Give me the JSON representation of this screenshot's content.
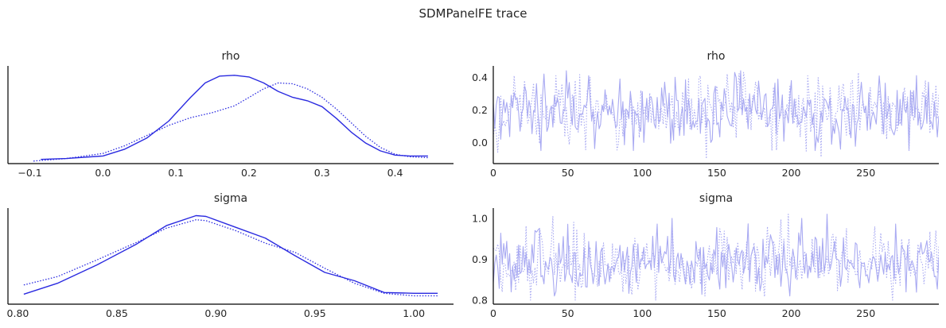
{
  "figure": {
    "title": "SDMPanelFE trace",
    "colors": {
      "kde": "#2a2ae0",
      "trace": "#a9aaf2",
      "axis": "#000000"
    }
  },
  "chart_data": [
    {
      "type": "line",
      "panel": "kde",
      "title": "rho",
      "xlabel": "",
      "ylabel": "",
      "xlim": [
        -0.13,
        0.48
      ],
      "ylim": [
        0,
        1.15
      ],
      "xticks": [
        -0.1,
        0.0,
        0.1,
        0.2,
        0.3,
        0.4
      ],
      "xtick_labels": [
        "−0.1",
        "0.0",
        "0.1",
        "0.2",
        "0.3",
        "0.4"
      ],
      "grid": false,
      "series": [
        {
          "style": "solid",
          "x": [
            -0.085,
            -0.05,
            0.0,
            0.03,
            0.06,
            0.09,
            0.12,
            0.14,
            0.16,
            0.18,
            0.2,
            0.22,
            0.24,
            0.26,
            0.28,
            0.3,
            0.32,
            0.34,
            0.36,
            0.38,
            0.4,
            0.42,
            0.445
          ],
          "y": [
            0.05,
            0.06,
            0.09,
            0.17,
            0.3,
            0.5,
            0.78,
            0.95,
            1.03,
            1.04,
            1.02,
            0.95,
            0.85,
            0.78,
            0.74,
            0.67,
            0.53,
            0.37,
            0.24,
            0.15,
            0.1,
            0.09,
            0.09
          ]
        },
        {
          "style": "dotted",
          "x": [
            -0.095,
            -0.05,
            0.0,
            0.03,
            0.06,
            0.09,
            0.12,
            0.15,
            0.18,
            0.2,
            0.22,
            0.24,
            0.26,
            0.28,
            0.3,
            0.32,
            0.34,
            0.36,
            0.38,
            0.4,
            0.42,
            0.445
          ],
          "y": [
            0.03,
            0.06,
            0.12,
            0.21,
            0.33,
            0.45,
            0.54,
            0.6,
            0.68,
            0.78,
            0.88,
            0.95,
            0.94,
            0.88,
            0.78,
            0.64,
            0.48,
            0.32,
            0.19,
            0.11,
            0.08,
            0.07
          ]
        }
      ]
    },
    {
      "type": "line",
      "panel": "trace",
      "title": "rho",
      "xlabel": "",
      "ylabel": "",
      "xlim": [
        0,
        299
      ],
      "ylim": [
        -0.13,
        0.47
      ],
      "xticks": [
        0,
        50,
        100,
        150,
        200,
        250
      ],
      "yticks": [
        0.0,
        0.2,
        0.4
      ],
      "xtick_labels": [
        "0",
        "50",
        "100",
        "150",
        "200",
        "250"
      ],
      "ytick_labels": [
        "0.0",
        "0.2",
        "0.4"
      ],
      "grid": false,
      "draws": 300,
      "series": [
        {
          "style": "solid",
          "mean": 0.19,
          "sd": 0.095,
          "min": -0.05,
          "max": 0.44,
          "anchors": [
            [
              0,
              0.24
            ],
            [
              2,
              0.23
            ],
            [
              5,
              0.02
            ],
            [
              34,
              0.42
            ],
            [
              56,
              0.08
            ],
            [
              64,
              0.41
            ],
            [
              101,
              0.0
            ],
            [
              122,
              0.4
            ],
            [
              146,
              0.0
            ],
            [
              162,
              0.43
            ],
            [
              166,
              0.44
            ],
            [
              190,
              0.05
            ],
            [
              200,
              0.38
            ],
            [
              218,
              0.0
            ],
            [
              247,
              0.37
            ],
            [
              271,
              0.32
            ],
            [
              287,
              0.08
            ],
            [
              292,
              0.37
            ]
          ]
        },
        {
          "style": "dotted",
          "mean": 0.19,
          "sd": 0.1,
          "min": -0.1,
          "max": 0.43,
          "anchors": [
            [
              3,
              -0.06
            ],
            [
              14,
              0.41
            ],
            [
              42,
              0.41
            ],
            [
              55,
              0.38
            ],
            [
              65,
              0.4
            ],
            [
              99,
              0.32
            ],
            [
              143,
              -0.1
            ],
            [
              157,
              0.42
            ],
            [
              168,
              0.43
            ],
            [
              176,
              0.37
            ],
            [
              187,
              -0.05
            ],
            [
              241,
              0.38
            ],
            [
              259,
              0.32
            ],
            [
              279,
              -0.05
            ],
            [
              290,
              0.38
            ]
          ]
        }
      ]
    },
    {
      "type": "line",
      "panel": "kde",
      "title": "sigma",
      "xlabel": "",
      "ylabel": "",
      "xlim": [
        0.795,
        1.02
      ],
      "ylim": [
        0,
        1.15
      ],
      "xticks": [
        0.8,
        0.85,
        0.9,
        0.95,
        1.0
      ],
      "xtick_labels": [
        "0.80",
        "0.85",
        "0.90",
        "0.95",
        "1.00"
      ],
      "grid": false,
      "series": [
        {
          "style": "solid",
          "x": [
            0.803,
            0.82,
            0.84,
            0.86,
            0.875,
            0.89,
            0.895,
            0.91,
            0.925,
            0.94,
            0.955,
            0.97,
            0.985,
            1.0,
            1.012
          ],
          "y": [
            0.12,
            0.25,
            0.47,
            0.72,
            0.94,
            1.06,
            1.05,
            0.92,
            0.79,
            0.58,
            0.38,
            0.28,
            0.14,
            0.13,
            0.13
          ]
        },
        {
          "style": "dotted",
          "x": [
            0.803,
            0.82,
            0.84,
            0.86,
            0.875,
            0.89,
            0.895,
            0.91,
            0.925,
            0.94,
            0.955,
            0.97,
            0.985,
            1.0,
            1.012
          ],
          "y": [
            0.23,
            0.33,
            0.53,
            0.74,
            0.91,
            1.01,
            1.0,
            0.88,
            0.73,
            0.62,
            0.43,
            0.25,
            0.13,
            0.1,
            0.1
          ]
        }
      ]
    },
    {
      "type": "line",
      "panel": "trace",
      "title": "sigma",
      "xlabel": "",
      "ylabel": "",
      "xlim": [
        0,
        299
      ],
      "ylim": [
        0.79,
        1.025
      ],
      "xticks": [
        0,
        50,
        100,
        150,
        200,
        250
      ],
      "yticks": [
        0.8,
        0.9,
        1.0
      ],
      "xtick_labels": [
        "0",
        "50",
        "100",
        "150",
        "200",
        "250"
      ],
      "ytick_labels": [
        "0.8",
        "0.9",
        "1.0"
      ],
      "grid": false,
      "draws": 300,
      "series": [
        {
          "style": "solid",
          "mean": 0.895,
          "sd": 0.035,
          "min": 0.81,
          "max": 1.01,
          "anchors": [
            [
              2,
              0.91
            ],
            [
              12,
              0.82
            ],
            [
              28,
              0.97
            ],
            [
              41,
              0.81
            ],
            [
              120,
              1.0
            ],
            [
              156,
              0.83
            ],
            [
              199,
              0.81
            ],
            [
              207,
              1.0
            ],
            [
              224,
              1.01
            ],
            [
              246,
              0.83
            ],
            [
              277,
              0.82
            ]
          ]
        },
        {
          "style": "dotted",
          "mean": 0.893,
          "sd": 0.037,
          "min": 0.8,
          "max": 1.01,
          "anchors": [
            [
              6,
              0.82
            ],
            [
              32,
              0.96
            ],
            [
              55,
              0.8
            ],
            [
              87,
              0.82
            ],
            [
              142,
              0.81
            ],
            [
              184,
              0.98
            ],
            [
              198,
              1.01
            ],
            [
              214,
              0.95
            ],
            [
              256,
              0.98
            ],
            [
              268,
              0.8
            ],
            [
              279,
              0.95
            ],
            [
              297,
              0.97
            ]
          ]
        }
      ]
    }
  ]
}
